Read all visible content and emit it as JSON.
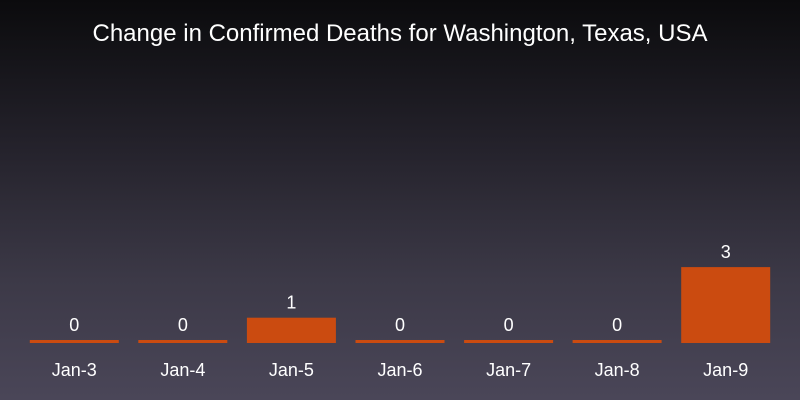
{
  "chart_data": {
    "type": "bar",
    "title": "Change in Confirmed Deaths for Washington, Texas, USA",
    "categories": [
      "Jan-3",
      "Jan-4",
      "Jan-5",
      "Jan-6",
      "Jan-7",
      "Jan-8",
      "Jan-9"
    ],
    "values": [
      0,
      0,
      1,
      0,
      0,
      0,
      3
    ],
    "data_labels": [
      "0",
      "0",
      "1",
      "0",
      "0",
      "0",
      "3"
    ],
    "xlabel": "",
    "ylabel": "",
    "ylim": [
      0,
      3
    ],
    "grid": false,
    "bar_color": "#cb4b10",
    "background_top": "#0b0b0d",
    "background_bottom": "#4a4658"
  }
}
